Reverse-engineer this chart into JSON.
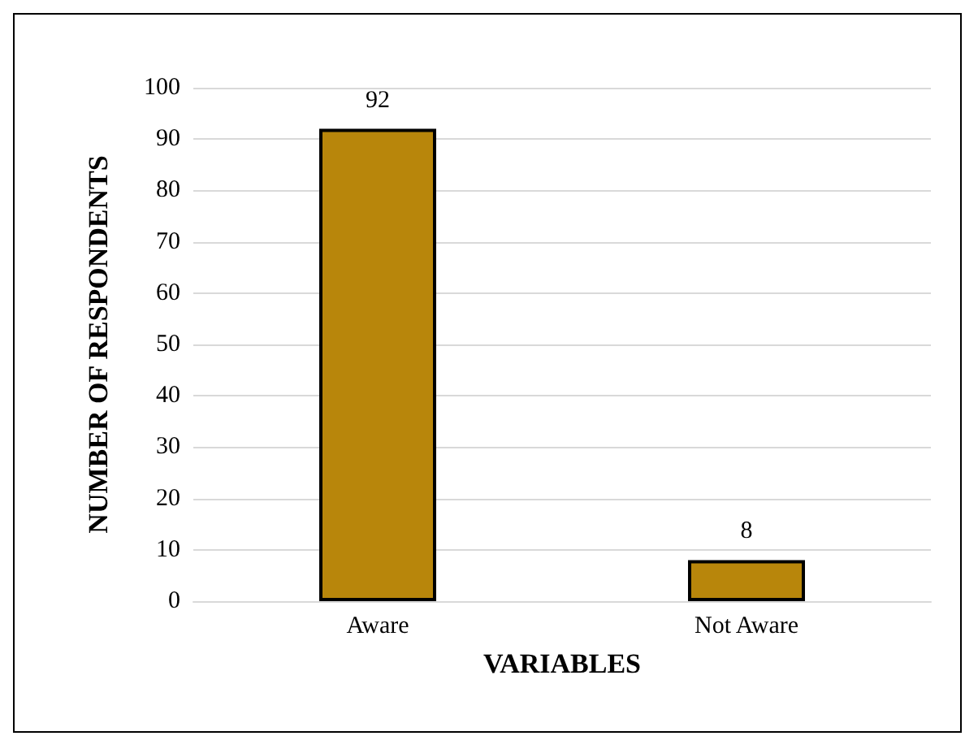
{
  "chart_data": {
    "type": "bar",
    "categories": [
      "Aware",
      "Not Aware"
    ],
    "values": [
      92,
      8
    ],
    "color": "#b8860b",
    "xlabel": "VARIABLES",
    "ylabel": "NUMBER OF RESPONDENTS",
    "ylim": [
      0,
      100
    ],
    "yticks": [
      0,
      10,
      20,
      30,
      40,
      50,
      60,
      70,
      80,
      90,
      100
    ],
    "grid": "y",
    "data_labels": true
  }
}
